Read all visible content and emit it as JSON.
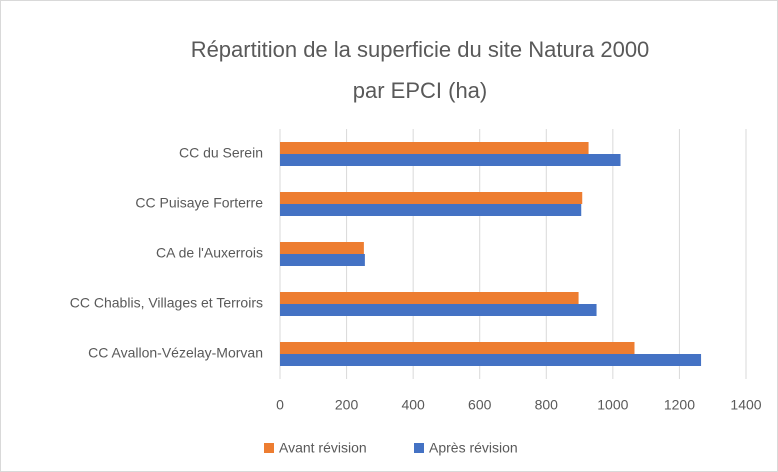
{
  "chart_data": {
    "type": "hbar",
    "title": [
      "Répartition de la superficie du site Natura 2000",
      "par EPCI (ha)"
    ],
    "categories": [
      "CC Avallon-Vézelay-Morvan",
      "CC Chablis, Villages et Terroirs",
      "CA de l'Auxerrois",
      "CC Puisaye Forterre",
      "CC du Serein"
    ],
    "series": [
      {
        "name": "Avant révision",
        "color": "#ed7d31",
        "values": [
          1065,
          897,
          252,
          908,
          927
        ]
      },
      {
        "name": "Après révision",
        "color": "#4472c4",
        "values": [
          1265,
          951,
          255,
          905,
          1023
        ]
      }
    ],
    "xlim": [
      0,
      1400
    ],
    "xticks": [
      0,
      200,
      400,
      600,
      800,
      1000,
      1200,
      1400
    ],
    "grid": true,
    "legend": "bottom"
  }
}
